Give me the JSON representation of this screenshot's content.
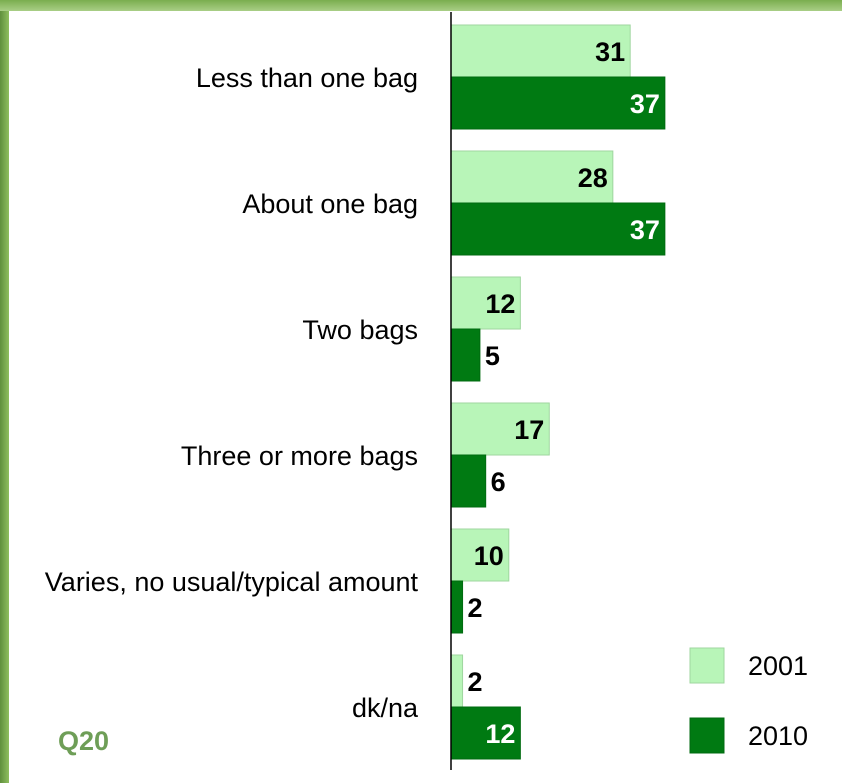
{
  "chart_data": {
    "type": "bar",
    "orientation": "horizontal",
    "categories": [
      "Less than one bag",
      "About one bag",
      "Two bags",
      "Three or more bags",
      "Varies, no usual/typical amount",
      "dk/na"
    ],
    "series": [
      {
        "name": "2001",
        "values": [
          31,
          28,
          12,
          17,
          10,
          2
        ],
        "color": "#b8f5b8"
      },
      {
        "name": "2010",
        "values": [
          37,
          37,
          5,
          6,
          2,
          12
        ],
        "color": "#007a12"
      }
    ],
    "xlim": [
      0,
      40
    ],
    "grid": false,
    "legend": "bottom-right"
  },
  "footnote": "Q20"
}
